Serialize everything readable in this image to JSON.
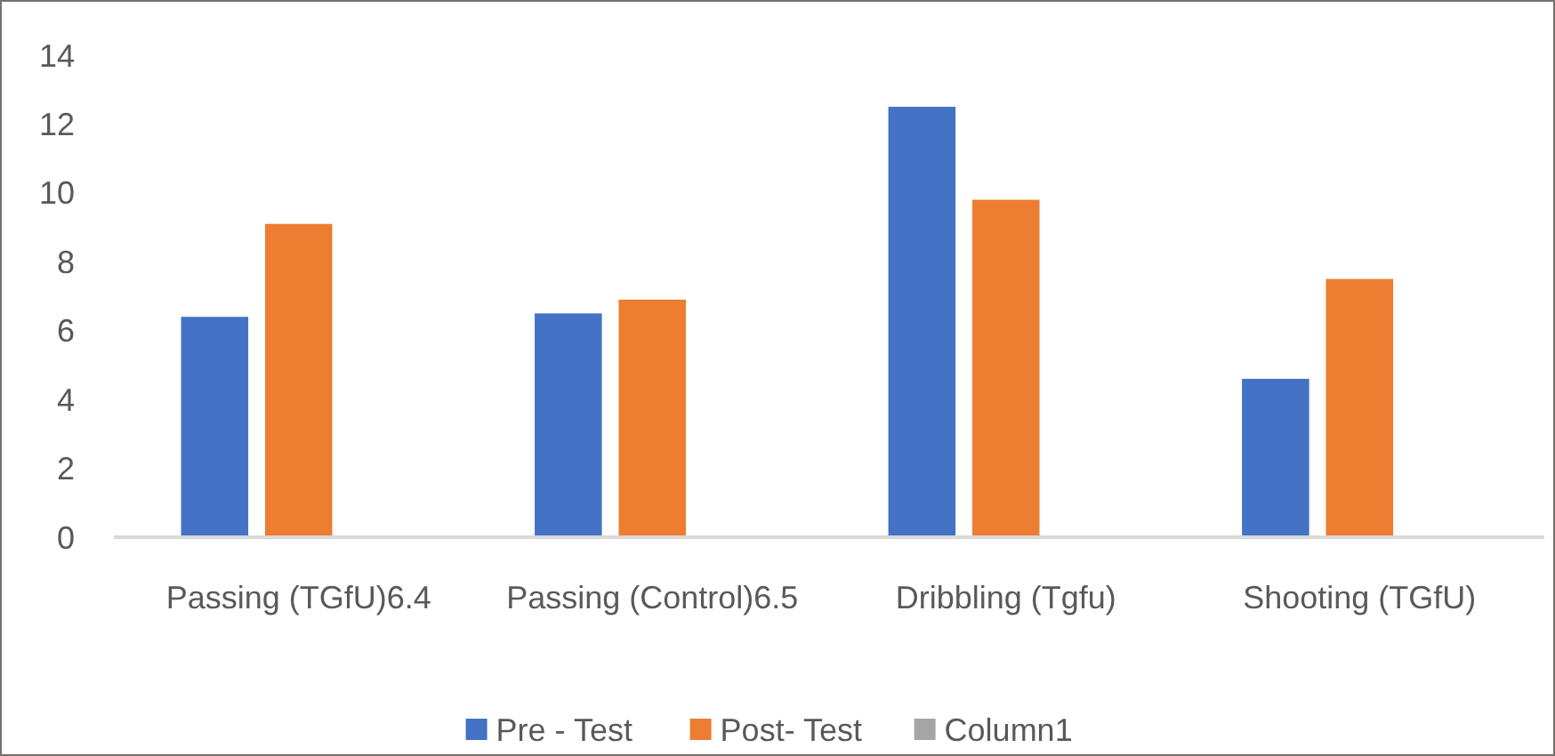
{
  "chart_data": {
    "type": "bar",
    "categories": [
      "Passing (TGfU)6.4",
      "Passing (Control)6.5",
      "Dribbling (Tgfu)",
      "Shooting (TGfU)"
    ],
    "series": [
      {
        "name": "Pre - Test",
        "color": "#4472c4",
        "values": [
          6.4,
          6.5,
          12.5,
          4.6
        ]
      },
      {
        "name": "Post- Test",
        "color": "#ed7d31",
        "values": [
          9.1,
          6.9,
          9.8,
          7.5
        ]
      },
      {
        "name": "Column1",
        "color": "#a5a5a5",
        "values": [
          null,
          null,
          null,
          null
        ]
      }
    ],
    "ylim": [
      0,
      14
    ],
    "yticks": [
      0,
      2,
      4,
      6,
      8,
      10,
      12,
      14
    ],
    "grid": false,
    "legend": "bottom"
  }
}
